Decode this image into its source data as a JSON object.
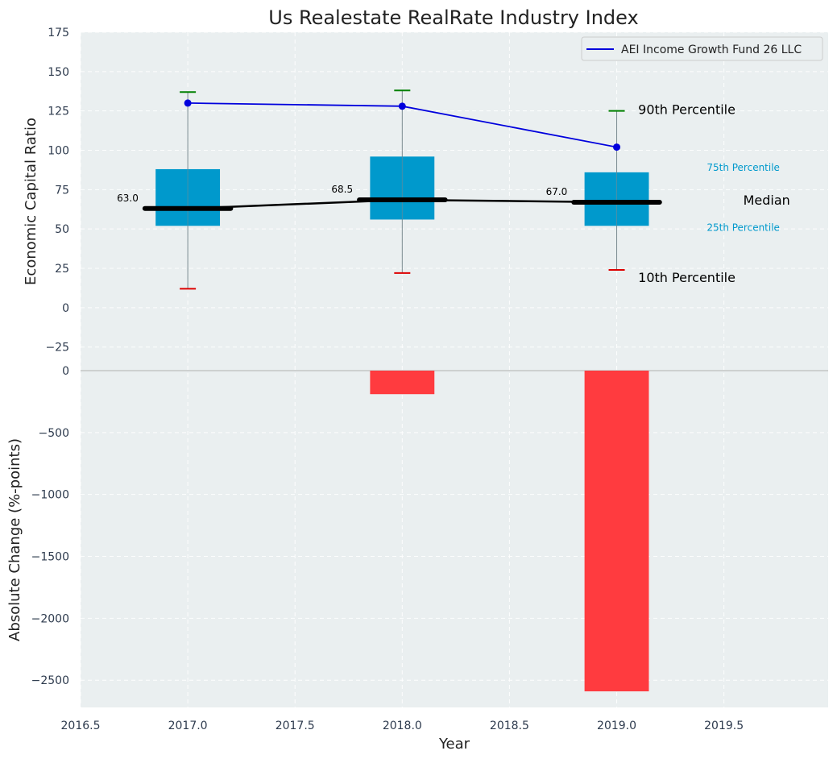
{
  "chart_data": {
    "title": "Us Realestate RealRate Industry Index",
    "xlabel": "Year",
    "top_panel": {
      "type": "box",
      "ylabel": "Economic Capital Ratio",
      "ylim": [
        -40,
        175
      ],
      "yticks": [
        175,
        150,
        125,
        100,
        75,
        50,
        25,
        0,
        -25
      ],
      "ytick_labels": [
        "175",
        "150",
        "125",
        "100",
        "75",
        "50",
        "25",
        "0",
        "−25"
      ],
      "boxes": [
        {
          "x": 2017,
          "p10": 12,
          "p25": 52,
          "median": 63.0,
          "p75": 88,
          "p90": 137,
          "median_label": "63.0"
        },
        {
          "x": 2018,
          "p10": 22,
          "p25": 56,
          "median": 68.5,
          "p75": 96,
          "p90": 138,
          "median_label": "68.5"
        },
        {
          "x": 2019,
          "p10": 24,
          "p25": 52,
          "median": 67.0,
          "p75": 86,
          "p90": 125,
          "median_label": "67.0"
        }
      ],
      "series": [
        {
          "name": "AEI Income Growth Fund 26 LLC",
          "color": "#0000dd",
          "x": [
            2017,
            2018,
            2019
          ],
          "y": [
            130,
            128,
            102
          ]
        }
      ],
      "annotations": {
        "p90": "90th Percentile",
        "p75": "75th Percentile",
        "median": "Median",
        "p25": "25th Percentile",
        "p10": "10th Percentile"
      },
      "legend_position": "top-right"
    },
    "bottom_panel": {
      "type": "bar",
      "ylabel": "Absolute Change (%-points)",
      "ylim": [
        -2720,
        0
      ],
      "yticks": [
        0,
        -500,
        -1000,
        -1500,
        -2000,
        -2500
      ],
      "ytick_labels": [
        "0",
        "−500",
        "−1000",
        "−1500",
        "−2000",
        "−2500"
      ],
      "x": [
        2018,
        2019
      ],
      "values": [
        -190,
        -2590
      ],
      "color": "#ff3b3f"
    },
    "xlim": [
      2016.5,
      1000000000.0
    ],
    "xticks": [
      2016.5,
      2017.0,
      2017.5,
      2018.0,
      2018.5,
      2019.0,
      2019.5
    ],
    "xtick_labels": [
      "2016.5",
      "2017.0",
      "2017.5",
      "2018.0",
      "2018.5",
      "2019.0",
      "2019.5"
    ],
    "colors": {
      "background": "#eaeff0",
      "box": "#0099cc",
      "median": "#000000",
      "p90_cap": "#008000",
      "p10_cap": "#dd0000",
      "line": "#0000dd",
      "bar": "#ff3b3f",
      "percentile_text": "#0099cc"
    }
  }
}
